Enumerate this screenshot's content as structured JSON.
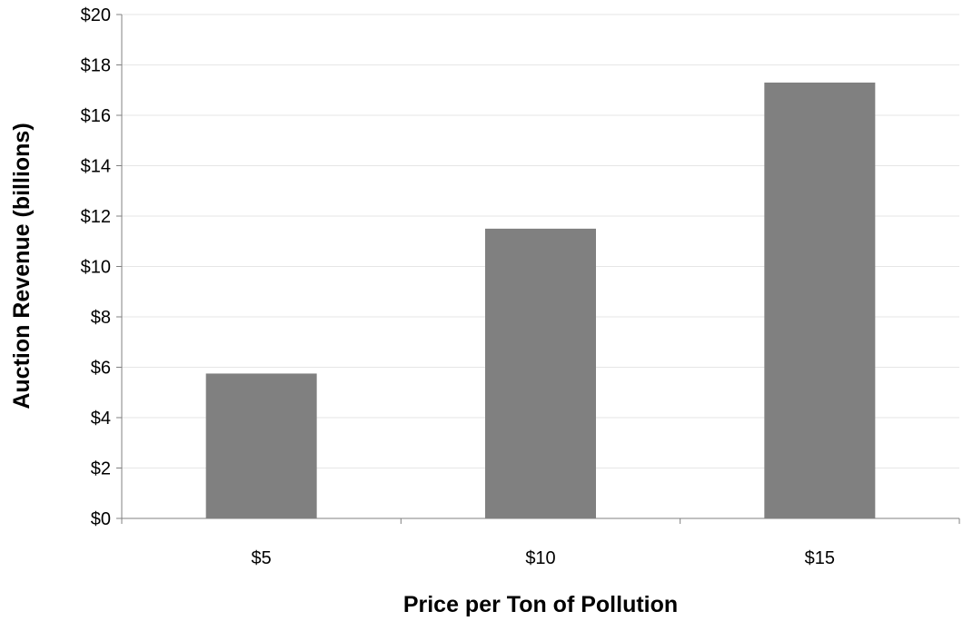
{
  "chart_data": {
    "type": "bar",
    "title": "",
    "xlabel": "Price per Ton of Pollution",
    "ylabel": "Auction Revenue (billions)",
    "categories": [
      "$5",
      "$10",
      "$15"
    ],
    "values": [
      5.75,
      11.5,
      17.3
    ],
    "ylim": [
      0,
      20
    ],
    "ytick_step": 2,
    "ytick_labels": [
      "$0",
      "$2",
      "$4",
      "$6",
      "$8",
      "$10",
      "$12",
      "$14",
      "$16",
      "$18",
      "$20"
    ],
    "grid": true,
    "legend": "none",
    "bar_color": "#808080",
    "grid_color": "#e6e6e6",
    "axis_color": "#808080"
  }
}
